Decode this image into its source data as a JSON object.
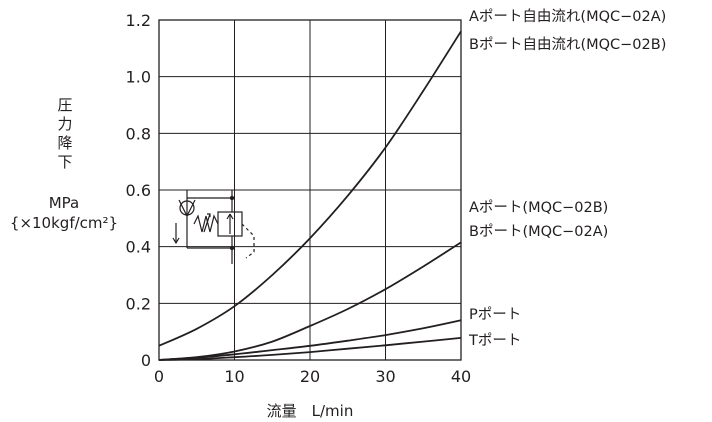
{
  "chart_data": {
    "type": "line",
    "xlabel": "流量　L/min",
    "ylabel_lines": [
      "圧",
      "力",
      "降",
      "下"
    ],
    "yunit_lines": [
      "MPa",
      "{×10kgf/cm²}"
    ],
    "xlim": [
      0,
      40
    ],
    "ylim": [
      0,
      1.2
    ],
    "xticks": [
      0,
      10,
      20,
      30,
      40
    ],
    "xtick_labels": [
      "0",
      "10",
      "20",
      "30",
      "40"
    ],
    "yticks": [
      0,
      0.2,
      0.4,
      0.6,
      0.8,
      1.0,
      1.2
    ],
    "ytick_labels": [
      "0",
      "0.2",
      "0.4",
      "0.6",
      "0.8",
      "1.0",
      "1.2"
    ],
    "grid": true,
    "series": [
      {
        "labels": [
          "Aポート自由流れ(MQC−02A)",
          "Bポート自由流れ(MQC−02B)"
        ],
        "x": [
          0,
          5,
          10,
          15,
          20,
          25,
          30,
          35,
          40
        ],
        "y": [
          0.05,
          0.11,
          0.19,
          0.3,
          0.43,
          0.58,
          0.75,
          0.95,
          1.16
        ]
      },
      {
        "labels": [
          "Aポート(MQC−02B)",
          "Bポート(MQC−02A)"
        ],
        "x": [
          0,
          5,
          10,
          15,
          20,
          25,
          30,
          35,
          40
        ],
        "y": [
          0,
          0.01,
          0.03,
          0.065,
          0.12,
          0.18,
          0.25,
          0.33,
          0.415
        ]
      },
      {
        "labels": [
          "Pポート"
        ],
        "x": [
          0,
          5,
          10,
          15,
          20,
          25,
          30,
          35,
          40
        ],
        "y": [
          0,
          0.008,
          0.02,
          0.035,
          0.05,
          0.068,
          0.088,
          0.112,
          0.14
        ]
      },
      {
        "labels": [
          "Tポート"
        ],
        "x": [
          0,
          5,
          10,
          15,
          20,
          25,
          30,
          35,
          40
        ],
        "y": [
          0,
          0.003,
          0.01,
          0.018,
          0.028,
          0.04,
          0.052,
          0.065,
          0.078
        ]
      }
    ]
  }
}
